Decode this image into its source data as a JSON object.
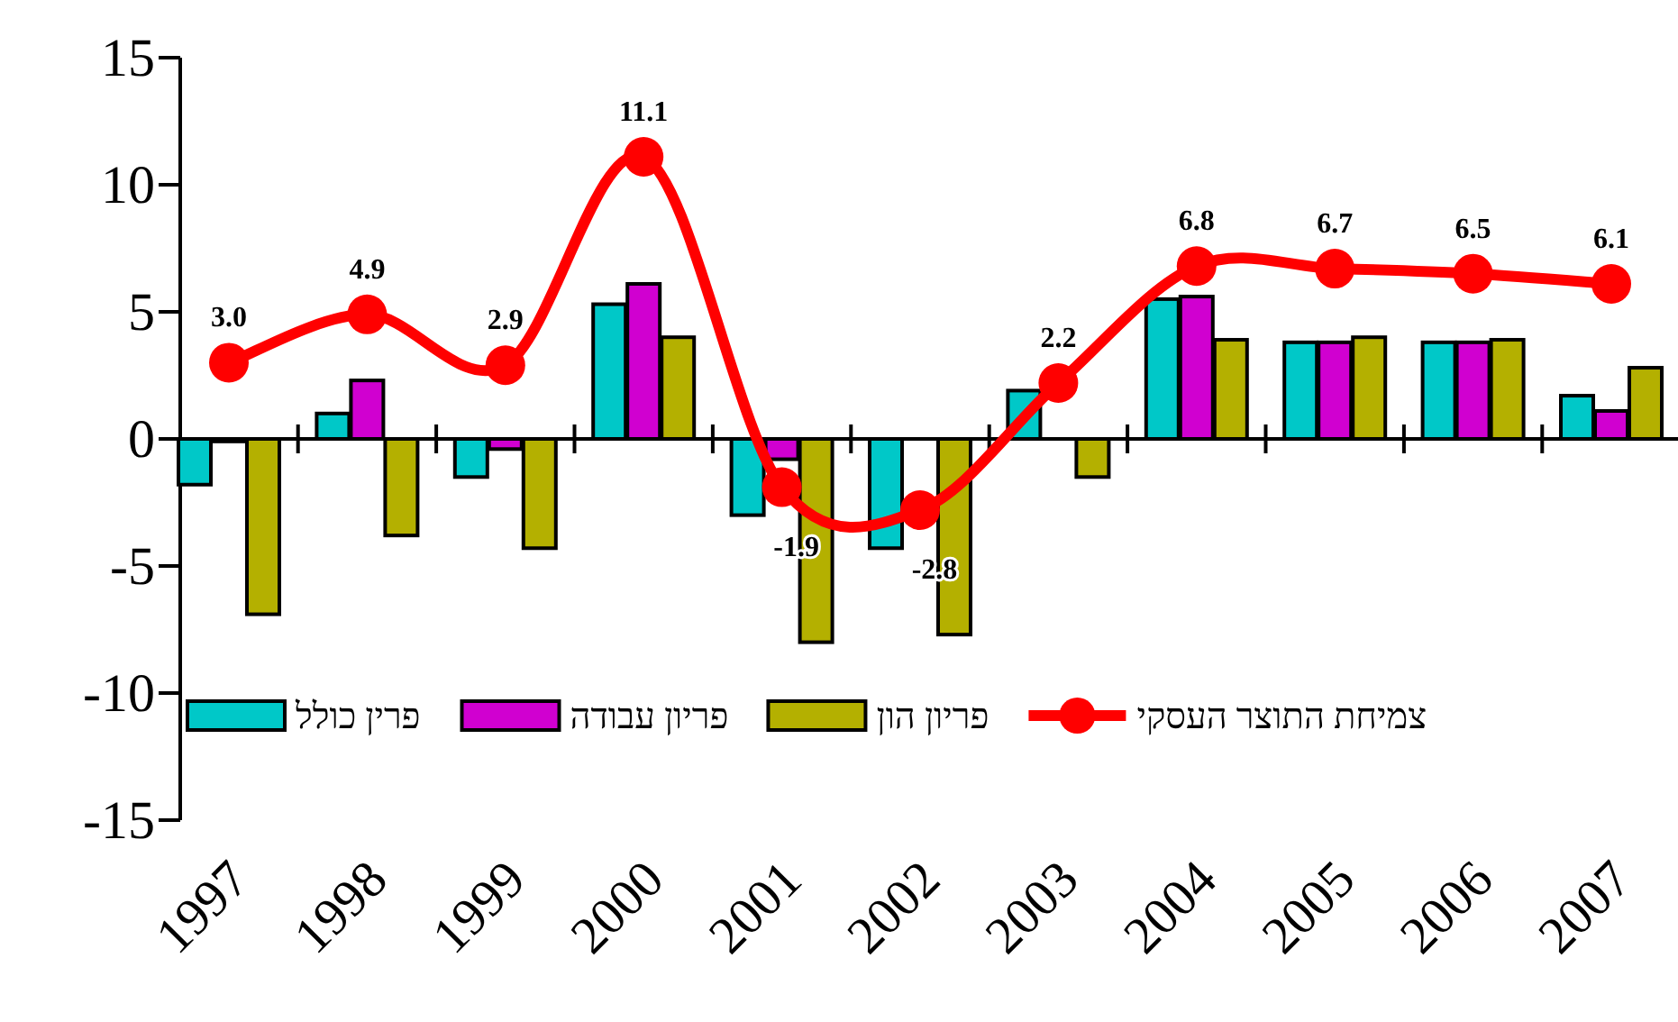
{
  "chart_data": {
    "type": "bar",
    "categories": [
      "1997",
      "1998",
      "1999",
      "2000",
      "2001",
      "2002",
      "2003",
      "2004",
      "2005",
      "2006",
      "2007"
    ],
    "series": [
      {
        "name": "פרין כולל",
        "color": "#00c8c8",
        "values": [
          -1.8,
          1.0,
          -1.5,
          5.3,
          -3.0,
          -4.3,
          1.9,
          5.5,
          3.8,
          3.8,
          1.7
        ]
      },
      {
        "name": "פריון עבודה",
        "color": "#d000d0",
        "values": [
          -0.1,
          2.3,
          -0.4,
          6.1,
          -0.8,
          null,
          null,
          5.6,
          3.8,
          3.8,
          1.1
        ]
      },
      {
        "name": "פריון הון",
        "color": "#b4b000",
        "values": [
          -6.9,
          -3.8,
          -4.3,
          4.0,
          -8.0,
          -7.7,
          -1.5,
          3.9,
          4.0,
          3.9,
          2.8
        ]
      },
      {
        "name": "צמיחת התוצר העסקי",
        "type": "line",
        "color": "#ff0000",
        "marker": "circle",
        "values": [
          3.0,
          4.9,
          2.9,
          11.1,
          -1.9,
          -2.8,
          2.2,
          6.8,
          6.7,
          6.5,
          6.1
        ],
        "value_labels": [
          "3.0",
          "4.9",
          "2.9",
          "11.1",
          "-1.9",
          "-2.8",
          "2.2",
          "6.8",
          "6.7",
          "6.5",
          "6.1"
        ]
      }
    ],
    "ylim": [
      -15,
      15
    ],
    "yticks": [
      -15,
      -10,
      -5,
      0,
      5,
      10,
      15
    ],
    "legend": "bottom"
  }
}
